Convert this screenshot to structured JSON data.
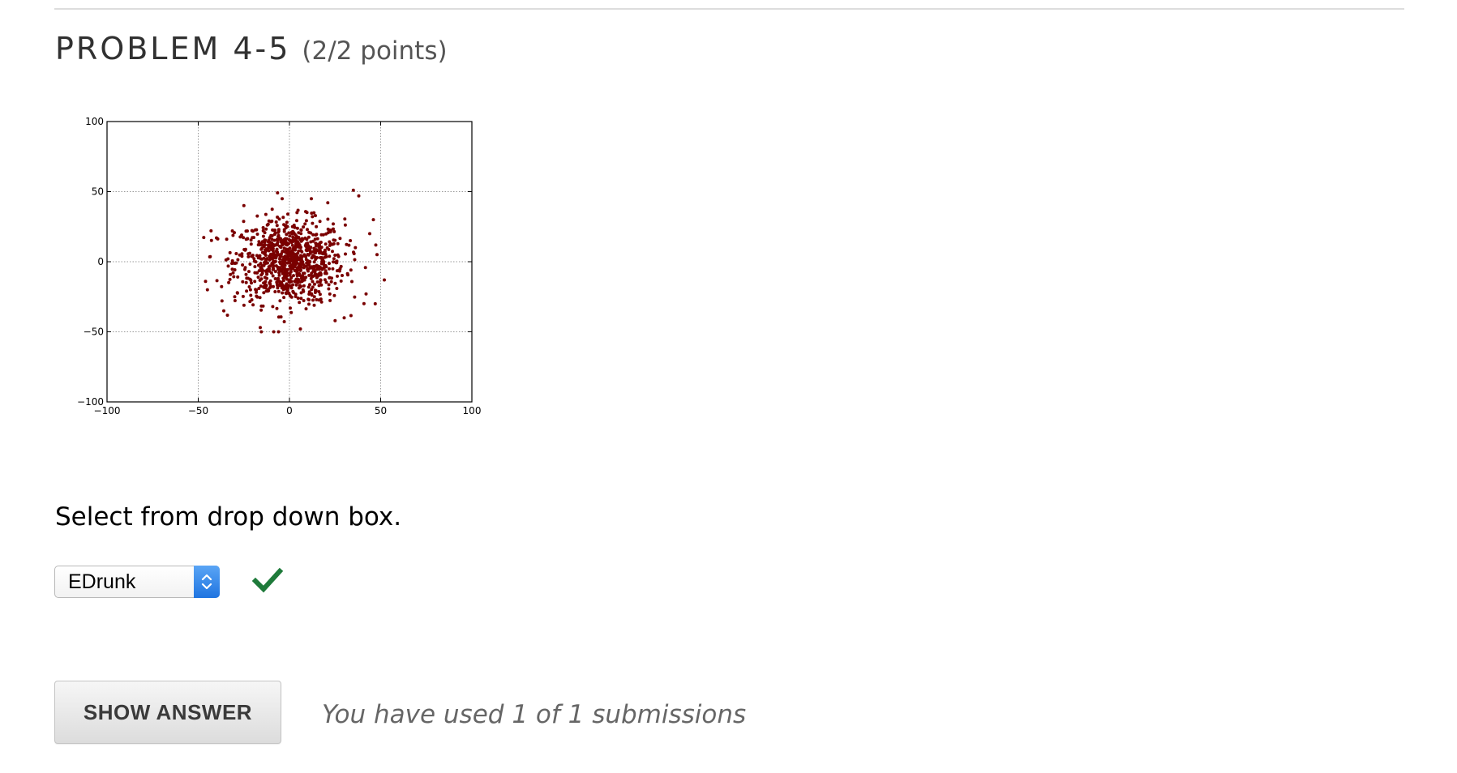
{
  "problem": {
    "title": "PROBLEM 4-5",
    "points": "(2/2 points)"
  },
  "chart_data": {
    "type": "scatter",
    "xlim": [
      -100,
      100
    ],
    "ylim": [
      -100,
      100
    ],
    "x_ticks": [
      "−100",
      "−50",
      "0",
      "50",
      "100"
    ],
    "y_ticks": [
      "100",
      "50",
      "0",
      "−50",
      "−100"
    ],
    "grid": true,
    "point_color": "#7a0000",
    "point_count_estimate": 900,
    "distribution": {
      "center": [
        0,
        0
      ],
      "approx_std_x": 15,
      "approx_std_y": 15,
      "approx_extent_x": [
        -47,
        52
      ],
      "approx_extent_y": [
        -50,
        52
      ]
    },
    "sample_points": [
      [
        35,
        51
      ],
      [
        38,
        47
      ],
      [
        -4,
        45
      ],
      [
        12,
        45
      ],
      [
        21,
        42
      ],
      [
        -25,
        40
      ],
      [
        46,
        30
      ],
      [
        -43,
        22
      ],
      [
        -40,
        17
      ],
      [
        44,
        20
      ],
      [
        48,
        5
      ],
      [
        52,
        -13
      ],
      [
        -46,
        -14
      ],
      [
        -45,
        -20
      ],
      [
        47,
        -30
      ],
      [
        42,
        -23
      ],
      [
        -36,
        -35
      ],
      [
        -37,
        -28
      ],
      [
        -16,
        -47
      ],
      [
        -6,
        -50
      ],
      [
        6,
        -48
      ],
      [
        25,
        -42
      ],
      [
        -30,
        -25
      ],
      [
        30,
        -40
      ]
    ]
  },
  "instruction": "Select from drop down box.",
  "dropdown": {
    "selected": "EDrunk"
  },
  "status": {
    "icon": "checkmark-icon",
    "color": "#1e7a3a"
  },
  "buttons": {
    "show_answer": "SHOW ANSWER"
  },
  "submissions_text": "You have used 1 of 1 submissions"
}
